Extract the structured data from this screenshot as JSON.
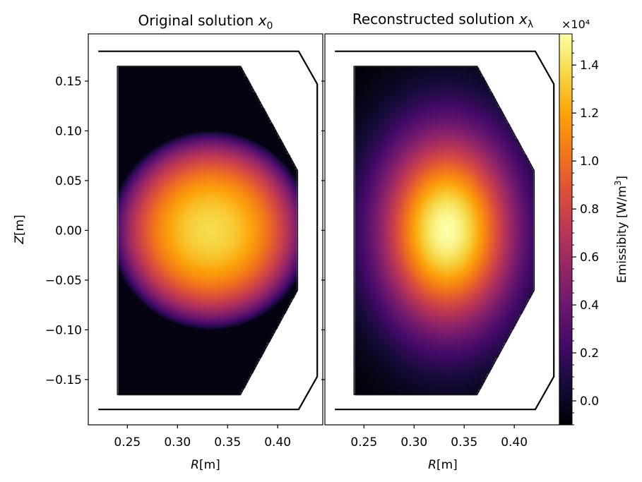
{
  "figure": {
    "colormap": "inferno",
    "colorbar_exponent": "×10⁴"
  },
  "chart_data": [
    {
      "type": "heatmap",
      "title": "Original solution",
      "title_math": "x",
      "title_sub": "0",
      "xlabel_math": "R",
      "xlabel_unit": "[m]",
      "ylabel_math": "Z",
      "ylabel_unit": "[m]",
      "xlim": [
        0.211,
        0.445
      ],
      "ylim": [
        -0.1955,
        0.1975
      ],
      "xticks": [
        0.25,
        0.3,
        0.35,
        0.4
      ],
      "xtick_labels": [
        "0.25",
        "0.30",
        "0.35",
        "0.40"
      ],
      "yticks": [
        0.15,
        0.1,
        0.05,
        0.0,
        -0.05,
        -0.1,
        -0.15
      ],
      "ytick_labels": [
        "0.15",
        "0.10",
        "0.05",
        "0.00",
        "−0.05",
        "−0.10",
        "−0.15"
      ],
      "emission": {
        "center_r": 0.333,
        "center_z": 0.0,
        "peak": 13800,
        "radius": 0.1,
        "profile": "parabolic"
      },
      "background_value": -600
    },
    {
      "type": "heatmap",
      "title": "Reconstructed solution",
      "title_math": "x",
      "title_sub": "λ",
      "xlabel_math": "R",
      "xlabel_unit": "[m]",
      "xlim": [
        0.211,
        0.445
      ],
      "ylim": [
        -0.1955,
        0.1975
      ],
      "xticks": [
        0.25,
        0.3,
        0.35,
        0.4
      ],
      "xtick_labels": [
        "0.25",
        "0.30",
        "0.35",
        "0.40"
      ],
      "emission": {
        "center_r": 0.333,
        "center_z": 0.0,
        "peak": 15300,
        "sigma_r": 0.048,
        "sigma_z": 0.07,
        "profile": "gaussian"
      },
      "background_value": -1000
    }
  ],
  "vessel": {
    "outer_wall": [
      [
        0.221,
        0.18
      ],
      [
        0.421,
        0.18
      ],
      [
        0.4395,
        0.147
      ],
      [
        0.4395,
        -0.147
      ],
      [
        0.421,
        -0.18
      ],
      [
        0.221,
        -0.18
      ]
    ],
    "grid_boundary": [
      [
        0.24,
        0.165
      ],
      [
        0.363,
        0.165
      ],
      [
        0.42,
        0.06
      ],
      [
        0.42,
        -0.06
      ],
      [
        0.363,
        -0.165
      ],
      [
        0.24,
        -0.165
      ]
    ]
  },
  "colorbar": {
    "label": "Emissibity [W/m",
    "label_sup": "3",
    "label_end": "]",
    "range": [
      -1000,
      15300
    ],
    "ticks": [
      0,
      2000,
      4000,
      6000,
      8000,
      10000,
      12000,
      14000
    ],
    "tick_labels": [
      "0.0",
      "0.2",
      "0.4",
      "0.6",
      "0.8",
      "1.0",
      "1.2",
      "1.4"
    ],
    "minor_step": 500
  }
}
